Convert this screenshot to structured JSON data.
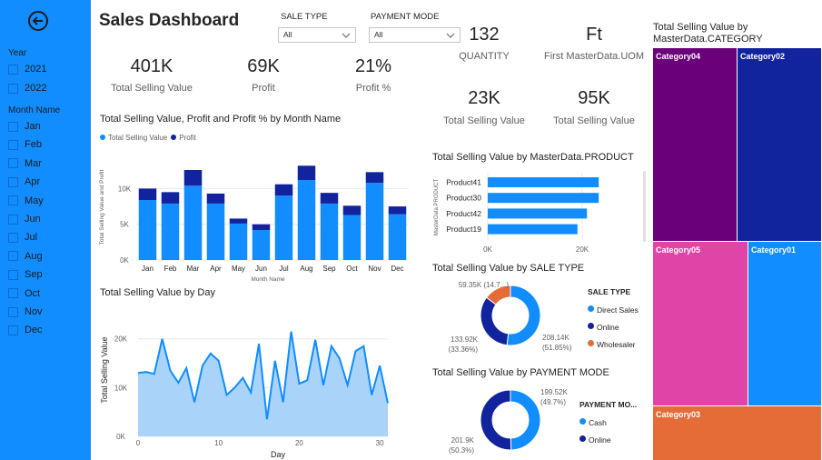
{
  "sidebar": {
    "year_title": "Year",
    "years": [
      "2021",
      "2022"
    ],
    "month_title": "Month Name",
    "months": [
      "Jan",
      "Feb",
      "Mar",
      "Apr",
      "May",
      "Jun",
      "Jul",
      "Aug",
      "Sep",
      "Oct",
      "Nov",
      "Dec"
    ]
  },
  "header": {
    "title": "Sales Dashboard"
  },
  "filters": {
    "sale_type_label": "SALE TYPE",
    "sale_type_value": "All",
    "payment_mode_label": "PAYMENT MODE",
    "payment_mode_value": "All"
  },
  "kpis": {
    "tsv_value": "401K",
    "tsv_label": "Total Selling Value",
    "profit_value": "69K",
    "profit_label": "Profit",
    "profit_pct_value": "21%",
    "profit_pct_label": "Profit %",
    "qty_value": "132",
    "qty_label": "QUANTITY",
    "uom_value": "Ft",
    "uom_label": "First MasterData.UOM",
    "tsv2_value": "23K",
    "tsv2_label": "Total Selling Value",
    "tsv3_value": "95K",
    "tsv3_label": "Total Selling Value"
  },
  "colors": {
    "accent": "#118dff",
    "dark": "#12239e",
    "orange": "#e66c37",
    "purple": "#6b007b",
    "pink": "#e044a7",
    "area_fill": "#a9d3f9"
  },
  "chart_data": [
    {
      "type": "bar",
      "title": "Total Selling Value, Profit and Profit % by Month Name",
      "xlabel": "Month Name",
      "ylabel": "Total Selling Value and Profit",
      "categories": [
        "Jan",
        "Feb",
        "Mar",
        "Apr",
        "May",
        "Jun",
        "Jul",
        "Aug",
        "Sep",
        "Oct",
        "Nov",
        "Dec"
      ],
      "series": [
        {
          "name": "Total Selling Value",
          "values": [
            8400,
            7900,
            10400,
            7900,
            5100,
            4200,
            9000,
            11200,
            7900,
            6300,
            10800,
            6400
          ]
        },
        {
          "name": "Profit",
          "values": [
            1600,
            1600,
            2200,
            1400,
            700,
            800,
            1600,
            2000,
            1500,
            1300,
            1500,
            1100
          ]
        }
      ],
      "yticks": [
        "0K",
        "5K",
        "10K"
      ],
      "ylim": [
        0,
        14000
      ],
      "stacked": true
    },
    {
      "type": "area",
      "title": "Total Selling Value by Day",
      "xlabel": "Day",
      "ylabel": "Total Selling Value",
      "x": [
        0,
        1,
        2,
        3,
        4,
        5,
        6,
        7,
        8,
        9,
        10,
        11,
        12,
        13,
        14,
        15,
        16,
        17,
        18,
        19,
        20,
        21,
        22,
        23,
        24,
        25,
        26,
        27,
        28,
        29,
        30,
        31
      ],
      "values": [
        13000,
        13200,
        12800,
        20000,
        13500,
        11000,
        14000,
        7000,
        14500,
        17000,
        15500,
        8500,
        10000,
        12000,
        9000,
        19000,
        3500,
        15500,
        7000,
        21500,
        10800,
        11500,
        19800,
        10500,
        18500,
        16000,
        10500,
        17500,
        18500,
        8500,
        14500,
        6800
      ],
      "xticks": [
        "0",
        "10",
        "20",
        "30"
      ],
      "yticks": [
        "0K",
        "10K",
        "20K"
      ],
      "ylim": [
        0,
        22000
      ],
      "xlim": [
        0,
        31
      ]
    },
    {
      "type": "bar",
      "orientation": "horizontal",
      "title": "Total Selling Value by MasterData.PRODUCT",
      "ylabel": "MasterData.PRODUCT",
      "categories": [
        "Product41",
        "Product30",
        "Product42",
        "Product19"
      ],
      "values": [
        23500,
        23500,
        21000,
        19000
      ],
      "xticks": [
        "0K",
        "20K"
      ],
      "xlim": [
        0,
        25000
      ]
    },
    {
      "type": "pie",
      "donut": true,
      "title": "Total Selling Value by SALE TYPE",
      "legend_title": "SALE TYPE",
      "labels": [
        "Direct Sales",
        "Online",
        "Wholesaler"
      ],
      "values": [
        208.14,
        133.92,
        59.35
      ],
      "value_labels": [
        "208.14K",
        "133.92K",
        "59.35K (14.7...)"
      ],
      "pct_labels": [
        "(51.85%)",
        "(33.36%)",
        ""
      ]
    },
    {
      "type": "pie",
      "donut": true,
      "title": "Total Selling Value by PAYMENT MODE",
      "legend_title": "PAYMENT MO...",
      "labels": [
        "Cash",
        "Online"
      ],
      "values": [
        199.52,
        201.9
      ],
      "value_labels": [
        "199.52K",
        "201.9K"
      ],
      "pct_labels": [
        "(49.7%)",
        "(50.3%)"
      ]
    },
    {
      "type": "treemap",
      "title": "Total Selling Value by MasterData.CATEGORY",
      "labels": [
        "Category04",
        "Category02",
        "Category05",
        "Category01",
        "Category03"
      ]
    }
  ]
}
